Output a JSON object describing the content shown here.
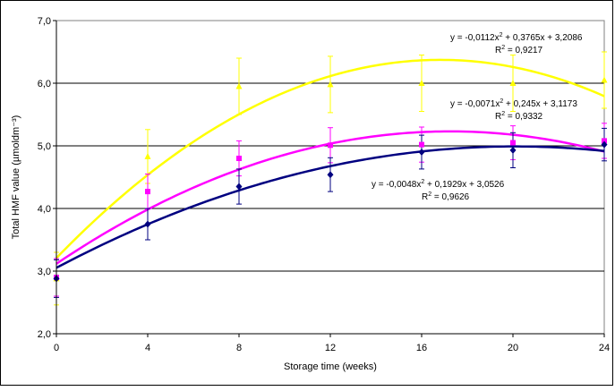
{
  "chart_data": {
    "type": "scatter",
    "title": "",
    "xlabel": "Storage time (weeks)",
    "ylabel": "Total HMF value (µmoldm⁻³)",
    "xlim": [
      0,
      24
    ],
    "ylim": [
      2.0,
      7.0
    ],
    "x_ticks": [
      "0",
      "4",
      "8",
      "12",
      "16",
      "20",
      "24"
    ],
    "y_ticks": [
      "2,0",
      "3,0",
      "4,0",
      "5,0",
      "6,0",
      "7,0"
    ],
    "grid": "horizontal",
    "legend": "none",
    "series": [
      {
        "color": "#FFFF00",
        "marker": "triangle",
        "x": [
          0,
          4,
          8,
          12,
          16,
          20,
          24
        ],
        "y": [
          2.88,
          4.83,
          5.95,
          5.98,
          6.0,
          6.0,
          6.05
        ],
        "error": [
          0.42,
          0.43,
          0.45,
          0.45,
          0.45,
          0.45,
          0.45
        ],
        "fit": {
          "a": -0.0112,
          "b": 0.3765,
          "c": 3.2086
        },
        "equation": "y = -0,0112x",
        "equation_tail": " + 0,3765x + 3,2086",
        "r2_label": "R",
        "r2_value": " = 0,9217"
      },
      {
        "color": "#FF00FF",
        "marker": "square",
        "x": [
          0,
          4,
          8,
          12,
          16,
          20,
          24
        ],
        "y": [
          2.9,
          4.27,
          4.8,
          5.01,
          5.02,
          5.05,
          5.08
        ],
        "error": [
          0.3,
          0.28,
          0.28,
          0.28,
          0.28,
          0.27,
          0.28
        ],
        "fit": {
          "a": -0.0071,
          "b": 0.245,
          "c": 3.1173
        },
        "equation": "y = -0,0071x",
        "equation_tail": " + 0,245x + 3,1173",
        "r2_label": "R",
        "r2_value": " = 0,9332"
      },
      {
        "color": "#000080",
        "marker": "diamond",
        "x": [
          0,
          4,
          8,
          12,
          16,
          20,
          24
        ],
        "y": [
          2.88,
          3.75,
          4.35,
          4.54,
          4.9,
          4.93,
          5.02
        ],
        "error": [
          0.3,
          0.25,
          0.28,
          0.27,
          0.27,
          0.28,
          0.26
        ],
        "fit": {
          "a": -0.0048,
          "b": 0.1929,
          "c": 3.0526
        },
        "equation": "y = -0,0048x",
        "equation_tail": " + 0,1929x + 3,0526",
        "r2_label": "R",
        "r2_value": " = 0,9626"
      }
    ]
  }
}
